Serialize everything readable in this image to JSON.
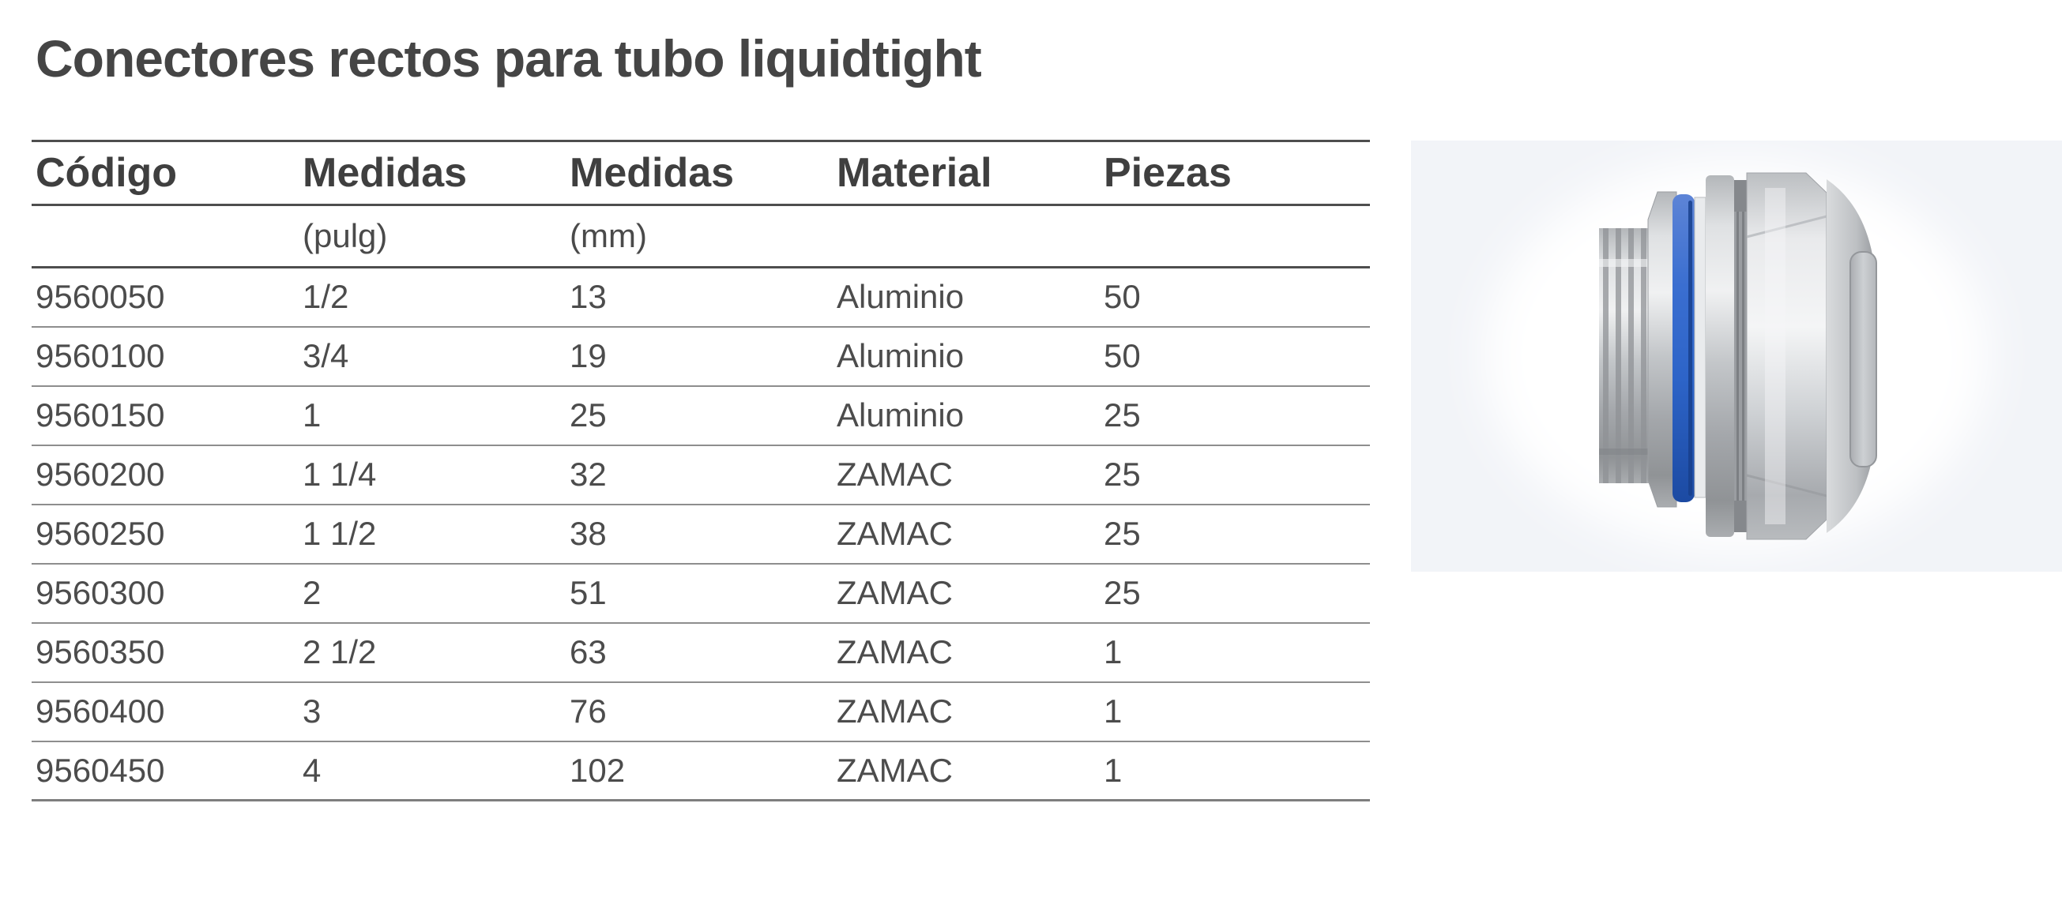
{
  "title": "Conectores rectos para tubo liquidtight",
  "table": {
    "columns": [
      {
        "label": "Código",
        "unit": ""
      },
      {
        "label": "Medidas",
        "unit": "(pulg)"
      },
      {
        "label": "Medidas",
        "unit": "(mm)"
      },
      {
        "label": "Material",
        "unit": ""
      },
      {
        "label": "Piezas",
        "unit": ""
      }
    ],
    "rows": [
      [
        "9560050",
        "1/2",
        "13",
        "Aluminio",
        "50"
      ],
      [
        "9560100",
        "3/4",
        "19",
        "Aluminio",
        "50"
      ],
      [
        "9560150",
        "1",
        "25",
        "Aluminio",
        "25"
      ],
      [
        "9560200",
        "1 1/4",
        "32",
        "ZAMAC",
        "25"
      ],
      [
        "9560250",
        "1 1/2",
        "38",
        "ZAMAC",
        "25"
      ],
      [
        "9560300",
        "2",
        "51",
        "ZAMAC",
        "25"
      ],
      [
        "9560350",
        "2 1/2",
        "63",
        "ZAMAC",
        "1"
      ],
      [
        "9560400",
        "3",
        "76",
        "ZAMAC",
        "1"
      ],
      [
        "9560450",
        "4",
        "102",
        "ZAMAC",
        "1"
      ]
    ]
  },
  "product_image": {
    "name": "conector-recto-liquidtight-photo",
    "description": "Conector recto metálico para tubo liquidtight con anillo azul",
    "panel_background": "#f2f4f8",
    "accent_blue": "#2d64c8"
  },
  "colors": {
    "title_text": "#454545",
    "header_text": "#3f3f3f",
    "body_text": "#4c4c4c",
    "heavy_rule": "#4e4e4e",
    "light_rule": "#8e8e8e",
    "bottom_rule": "#7e7e7e",
    "page_background": "#ffffff"
  }
}
